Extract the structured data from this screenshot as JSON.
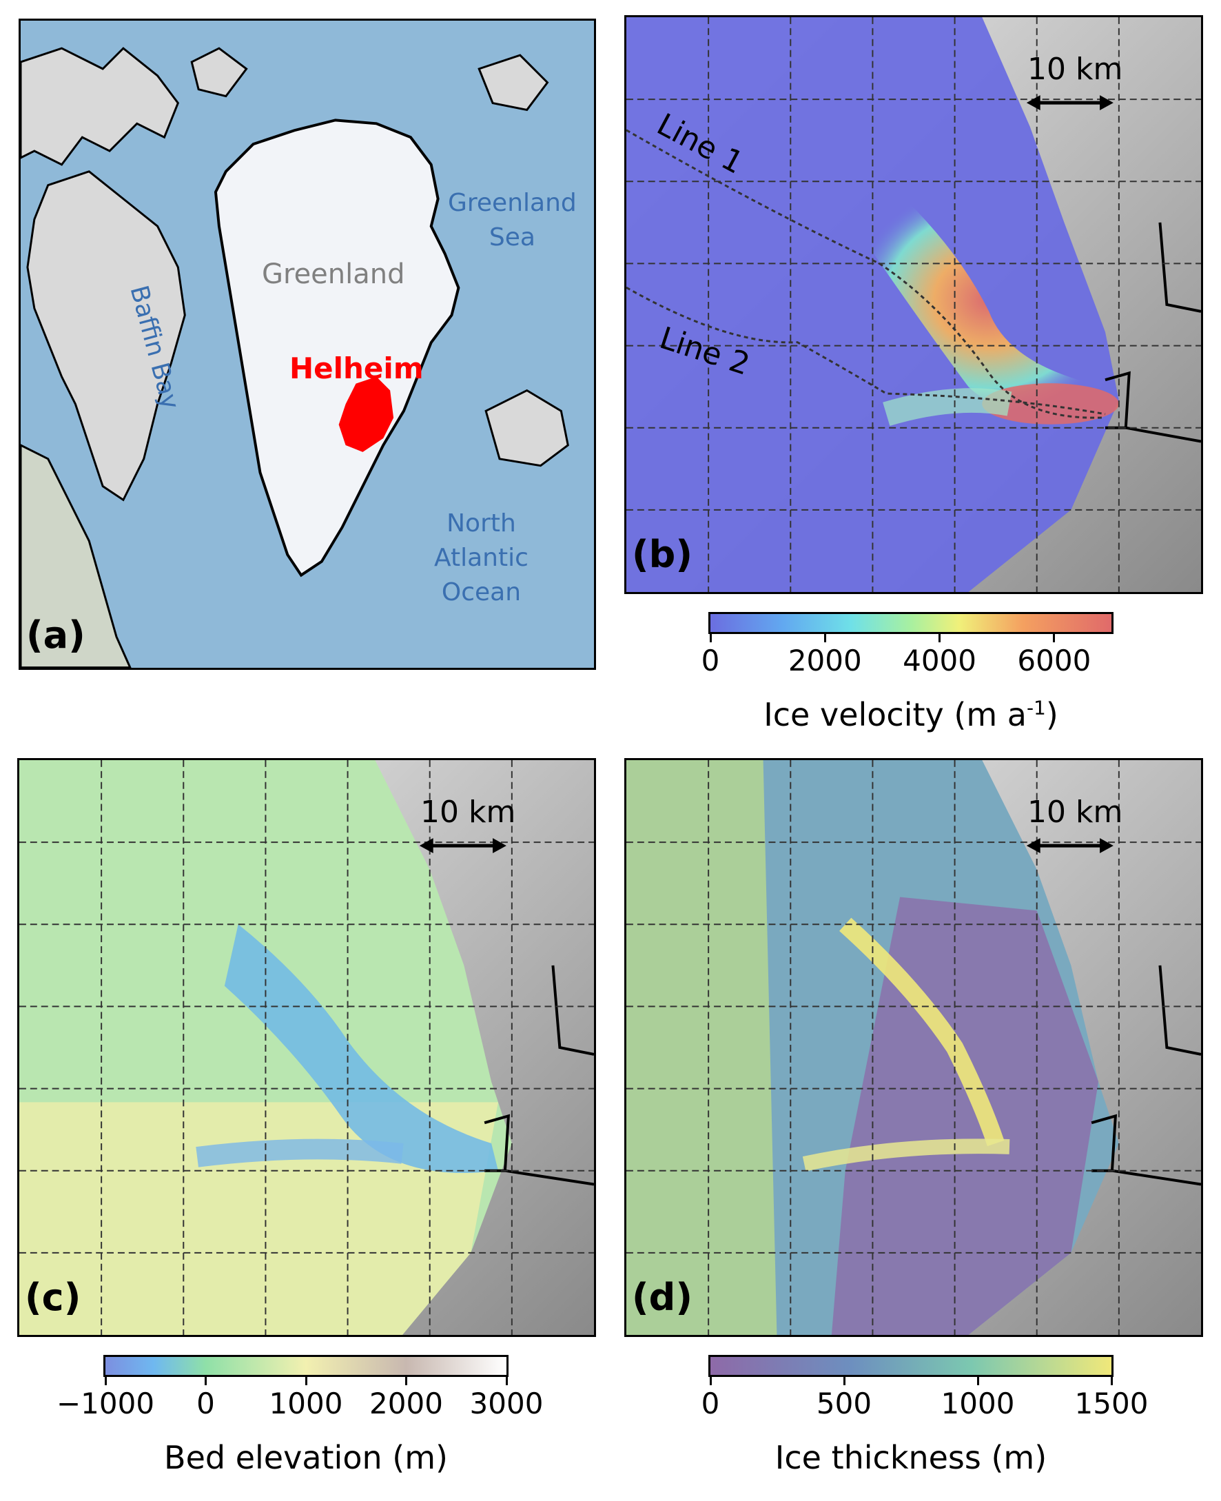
{
  "panels": {
    "a": {
      "label": "(a)",
      "places": {
        "greenland": "Greenland",
        "helheim": "Helheim",
        "baffin_bay": "Baffin Bay",
        "greenland_sea": [
          "Greenland",
          "Sea"
        ],
        "north_atlantic": [
          "North",
          "Atlantic",
          "Ocean"
        ]
      }
    },
    "b": {
      "label": "(b)",
      "scale_bar": "10 km",
      "lines": [
        "Line 1",
        "Line 2"
      ],
      "colorbar": {
        "title_main": "Ice velocity (m a",
        "title_sup": "-1",
        "title_end": ")",
        "ticks": [
          "0",
          "2000",
          "4000",
          "6000"
        ],
        "tick_values": [
          0,
          2000,
          4000,
          6000
        ],
        "range": [
          0,
          7000
        ]
      }
    },
    "c": {
      "label": "(c)",
      "scale_bar": "10 km",
      "colorbar": {
        "title": "Bed elevation (m)",
        "ticks": [
          "−1000",
          "0",
          "1000",
          "2000",
          "3000"
        ],
        "tick_values": [
          -1000,
          0,
          1000,
          2000,
          3000
        ],
        "range": [
          -1000,
          3000
        ]
      }
    },
    "d": {
      "label": "(d)",
      "scale_bar": "10 km",
      "colorbar": {
        "title": "Ice thickness (m)",
        "ticks": [
          "0",
          "500",
          "1000",
          "1500"
        ],
        "tick_values": [
          0,
          500,
          1000,
          1500
        ],
        "range": [
          0,
          1500
        ]
      }
    }
  },
  "colors": {
    "ocean": "#8fb9d8",
    "land": "#d7d7d7",
    "ice": "#f2f4f8",
    "helheim": "#ff0000",
    "ocean_label": "#3a6fb0",
    "greenland_label": "#808080"
  }
}
